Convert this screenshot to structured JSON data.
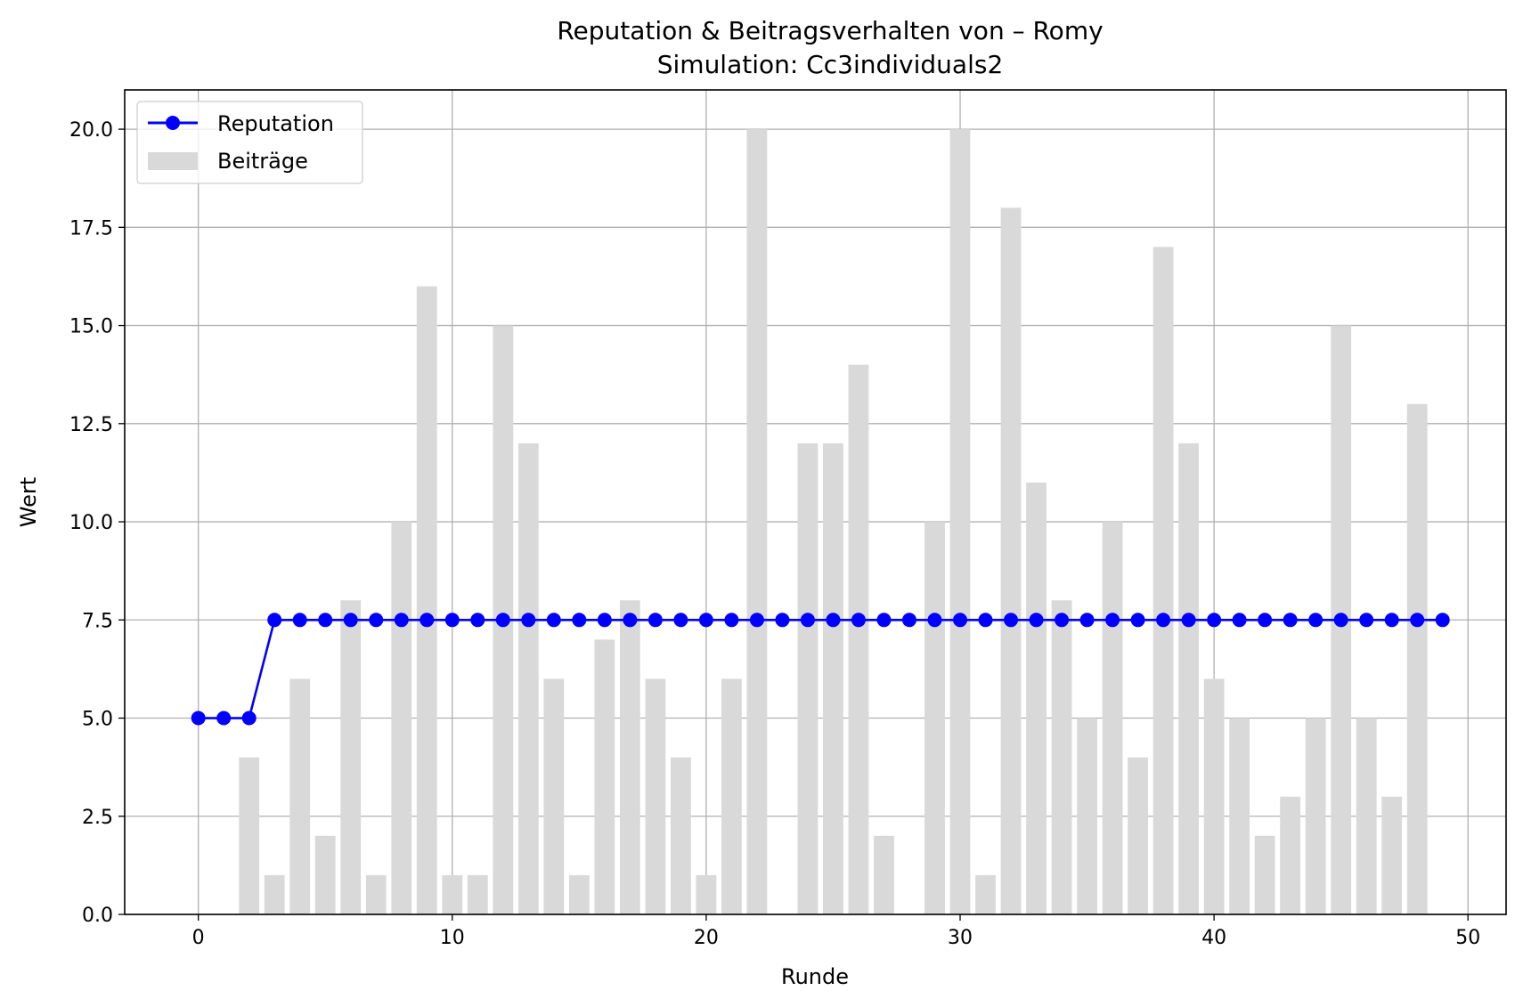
{
  "chart_data": {
    "type": "bar",
    "title": "Reputation & Beitragsverhalten von – Romy",
    "subtitle": "Simulation: Cc3individuals2",
    "xlabel": "Runde",
    "ylabel": "Wert",
    "xlim": [
      -2.9,
      51.5
    ],
    "ylim": [
      0,
      21
    ],
    "xticks": [
      0,
      10,
      20,
      30,
      40,
      50
    ],
    "xtick_labels": [
      "0",
      "10",
      "20",
      "30",
      "40",
      "50"
    ],
    "yticks": [
      0,
      2.5,
      5,
      7.5,
      10,
      12.5,
      15,
      17.5,
      20
    ],
    "ytick_labels": [
      "0.0",
      "2.5",
      "5.0",
      "7.5",
      "10.0",
      "12.5",
      "15.0",
      "17.5",
      "20.0"
    ],
    "grid": true,
    "legend_position": "top-left",
    "x": [
      0,
      1,
      2,
      3,
      4,
      5,
      6,
      7,
      8,
      9,
      10,
      11,
      12,
      13,
      14,
      15,
      16,
      17,
      18,
      19,
      20,
      21,
      22,
      23,
      24,
      25,
      26,
      27,
      28,
      29,
      30,
      31,
      32,
      33,
      34,
      35,
      36,
      37,
      38,
      39,
      40,
      41,
      42,
      43,
      44,
      45,
      46,
      47,
      48,
      49
    ],
    "series": [
      {
        "name": "Beiträge",
        "kind": "bar",
        "color": "#d9d9d9",
        "values": [
          0,
          0,
          4,
          1,
          6,
          2,
          8,
          1,
          10,
          16,
          1,
          1,
          15,
          12,
          6,
          1,
          7,
          8,
          6,
          4,
          1,
          6,
          20,
          0,
          12,
          12,
          14,
          2,
          0,
          10,
          20,
          1,
          18,
          11,
          8,
          5,
          10,
          4,
          17,
          12,
          6,
          5,
          2,
          3,
          5,
          15,
          5,
          3,
          13,
          0
        ]
      },
      {
        "name": "Reputation",
        "kind": "line",
        "color": "#0000ff",
        "values": [
          5,
          5,
          5,
          7.5,
          7.5,
          7.5,
          7.5,
          7.5,
          7.5,
          7.5,
          7.5,
          7.5,
          7.5,
          7.5,
          7.5,
          7.5,
          7.5,
          7.5,
          7.5,
          7.5,
          7.5,
          7.5,
          7.5,
          7.5,
          7.5,
          7.5,
          7.5,
          7.5,
          7.5,
          7.5,
          7.5,
          7.5,
          7.5,
          7.5,
          7.5,
          7.5,
          7.5,
          7.5,
          7.5,
          7.5,
          7.5,
          7.5,
          7.5,
          7.5,
          7.5,
          7.5,
          7.5,
          7.5,
          7.5,
          7.5
        ]
      }
    ]
  }
}
